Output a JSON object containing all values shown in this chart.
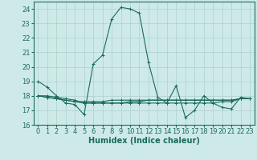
{
  "xlabel": "Humidex (Indice chaleur)",
  "background_color": "#ceeae8",
  "grid_color": "#aed0cc",
  "line_color": "#1a6b5a",
  "ylim": [
    16,
    24.5
  ],
  "xlim": [
    -0.5,
    23.5
  ],
  "yticks": [
    16,
    17,
    18,
    19,
    20,
    21,
    22,
    23,
    24
  ],
  "xticks": [
    0,
    1,
    2,
    3,
    4,
    5,
    6,
    7,
    8,
    9,
    10,
    11,
    12,
    13,
    14,
    15,
    16,
    17,
    18,
    19,
    20,
    21,
    22,
    23
  ],
  "series": [
    [
      19.0,
      18.6,
      18.0,
      17.5,
      17.4,
      16.7,
      20.2,
      20.8,
      23.3,
      24.1,
      24.0,
      23.7,
      20.3,
      17.9,
      17.5,
      18.7,
      16.5,
      17.0,
      18.0,
      17.5,
      17.2,
      17.1,
      17.9,
      17.8
    ],
    [
      18.0,
      18.0,
      17.9,
      17.8,
      17.7,
      17.5,
      17.5,
      17.5,
      17.5,
      17.5,
      17.5,
      17.5,
      17.5,
      17.5,
      17.5,
      17.5,
      17.5,
      17.5,
      17.5,
      17.5,
      17.6,
      17.6,
      17.8,
      17.8
    ],
    [
      18.0,
      17.9,
      17.8,
      17.7,
      17.6,
      17.5,
      17.5,
      17.5,
      17.5,
      17.5,
      17.6,
      17.6,
      17.7,
      17.7,
      17.7,
      17.7,
      17.7,
      17.7,
      17.7,
      17.7,
      17.7,
      17.7,
      17.8,
      17.8
    ],
    [
      18.0,
      17.9,
      17.8,
      17.7,
      17.6,
      17.6,
      17.6,
      17.6,
      17.7,
      17.7,
      17.7,
      17.7,
      17.7,
      17.7,
      17.7,
      17.7,
      17.7,
      17.7,
      17.7,
      17.7,
      17.7,
      17.7,
      17.8,
      17.8
    ]
  ],
  "marker": "+",
  "markersize": 3,
  "linewidth": 0.8,
  "xlabel_fontsize": 7,
  "tick_fontsize": 6
}
